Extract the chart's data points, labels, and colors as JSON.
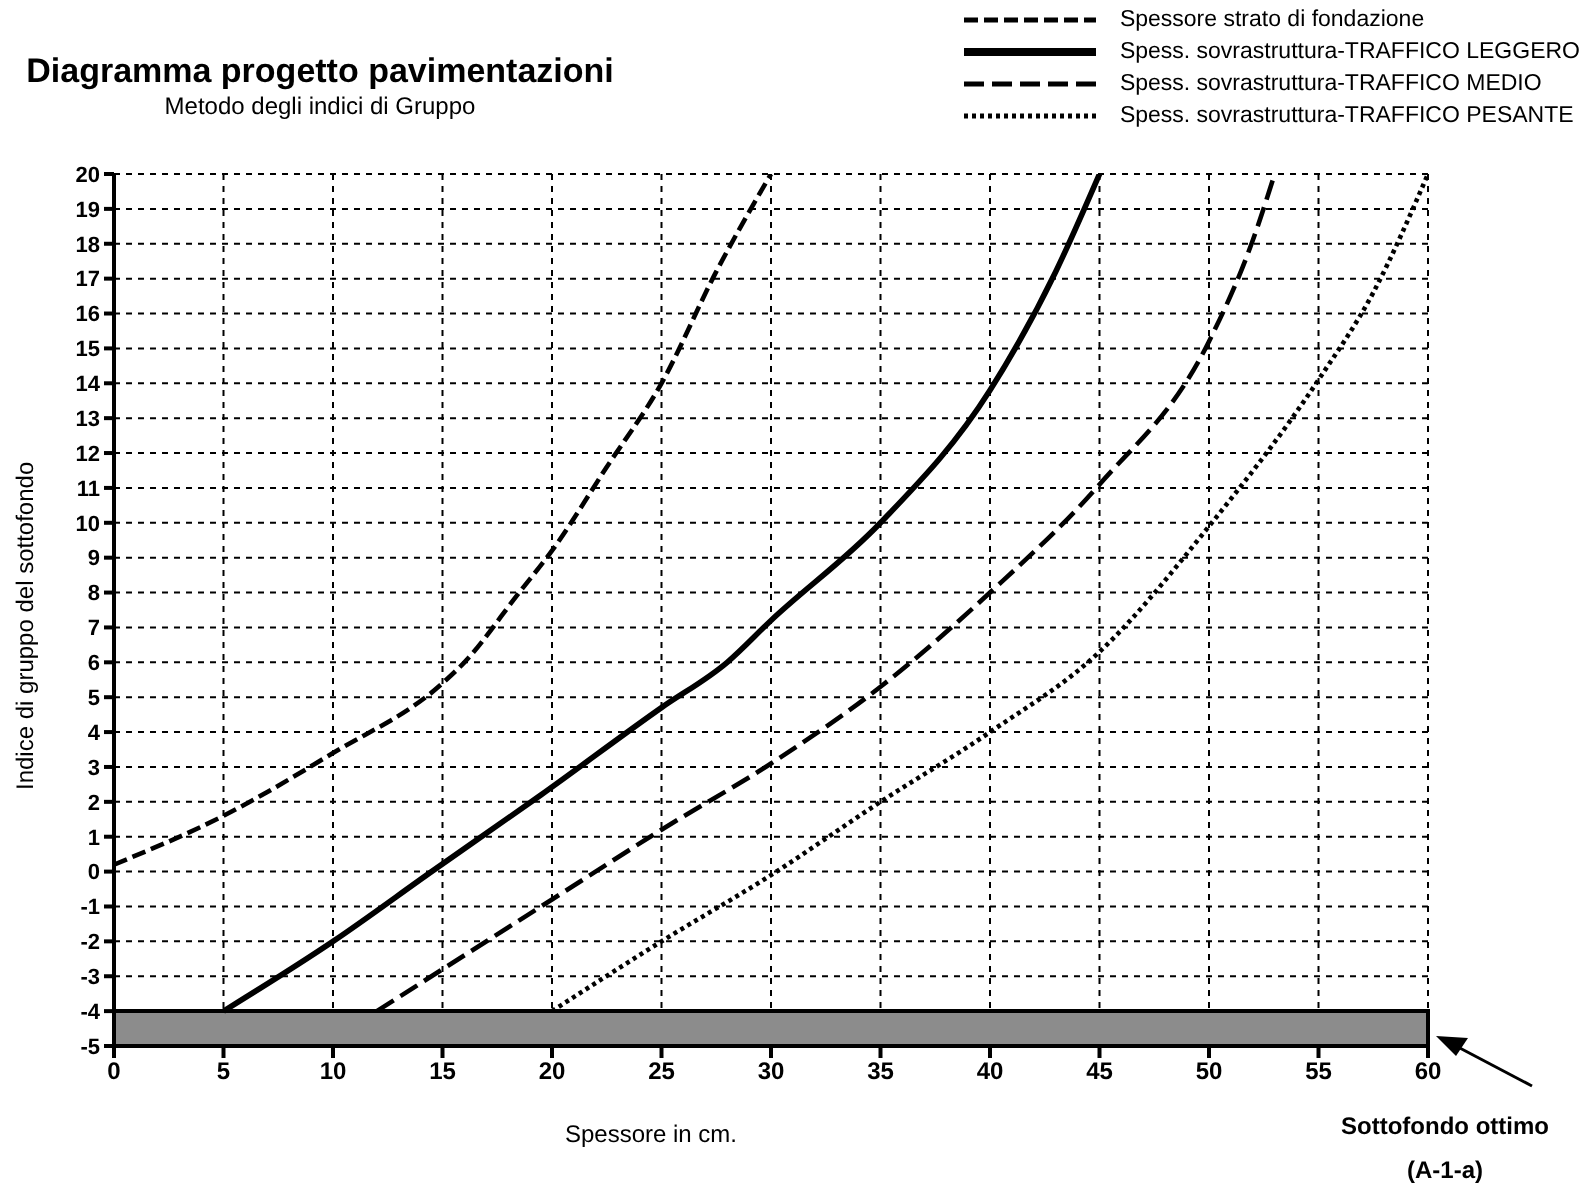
{
  "chart_data": {
    "type": "line",
    "title": "Diagramma progetto pavimentazioni",
    "subtitle": "Metodo degli indici di Gruppo",
    "xlabel": "Spessore in cm.",
    "ylabel": "Indice di gruppo del sottofondo",
    "xlim": [
      0,
      60
    ],
    "xticks": [
      0,
      5,
      10,
      15,
      20,
      25,
      30,
      35,
      40,
      45,
      50,
      55,
      60
    ],
    "ylim": [
      -5,
      20
    ],
    "yticks": [
      -5,
      -4,
      -3,
      -2,
      -1,
      0,
      1,
      2,
      3,
      4,
      5,
      6,
      7,
      8,
      9,
      10,
      11,
      12,
      13,
      14,
      15,
      16,
      17,
      18,
      19,
      20
    ],
    "grid": true,
    "legend": "top right",
    "marker": "none",
    "series": [
      {
        "name": "Spessore strato di fondazione",
        "color": "#000000",
        "line_style": "dashed",
        "x": [
          0,
          5,
          10,
          15,
          16,
          18.5,
          20,
          22.5,
          25,
          27.5,
          30
        ],
        "values": [
          0.2,
          1.6,
          3.4,
          5.4,
          6,
          8,
          9.2,
          11.6,
          14,
          17.2,
          20
        ]
      },
      {
        "name": "Spess. sovrastruttura-TRAFFICO LEGGERO",
        "color": "#000000",
        "line_style": "solid",
        "x": [
          5,
          10,
          14.5,
          19.5,
          25,
          28,
          30,
          35,
          40,
          43,
          45
        ],
        "values": [
          -4,
          -2,
          0,
          2.2,
          4.7,
          6,
          7.2,
          10,
          13.8,
          17.2,
          20
        ]
      },
      {
        "name": "Spess. sovrastruttura-TRAFFICO MEDIO",
        "color": "#000000",
        "line_style": "dashed",
        "x": [
          12,
          15,
          20,
          25,
          30,
          35,
          40,
          45,
          50,
          52,
          53
        ],
        "values": [
          -4,
          -2.8,
          -0.8,
          1.2,
          3.1,
          5.3,
          8,
          11.1,
          15.2,
          18.1,
          20
        ]
      },
      {
        "name": "Spess. sovrastruttura-TRAFFICO PESANTE",
        "color": "#000000",
        "line_style": "dotted",
        "x": [
          20,
          25,
          30,
          35,
          40,
          45,
          50,
          55,
          57.5,
          60
        ],
        "values": [
          -4,
          -2,
          -0.1,
          2,
          4,
          6.3,
          9.9,
          14.1,
          16.6,
          20
        ]
      }
    ],
    "bands": [
      {
        "axis": "y",
        "from": -5,
        "to": -4,
        "label": "Sottofondo ottimo (A-1-a)",
        "color": "#8c8c8c"
      }
    ]
  }
}
